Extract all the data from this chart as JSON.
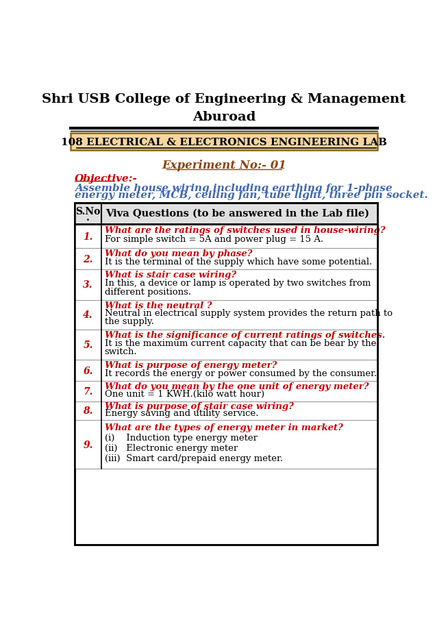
{
  "title_line1": "Shri USB College of Engineering & Management",
  "title_line2": "Aburoad",
  "lab_title": "108 ELECTRICAL & ELECTRONICS ENGINEERING LAB",
  "experiment": "Experiment No:- 01",
  "objective_label": "Objective:-",
  "objective_text_1": "Assemble house wiring including earthing for 1-phase",
  "objective_text_2": "energy meter, MCB, ceiling fan, tube light, three pin socket.",
  "table_header_col2": "Viva Questions (to be answered in the Lab file)",
  "rows": [
    {
      "num": "1.",
      "question": "What are the ratings of switches used in house-wiring?",
      "answer": "For simple switch = 5A and power plug = 15 A."
    },
    {
      "num": "2.",
      "question": "What do you mean by phase?",
      "answer": "It is the terminal of the supply which have some potential."
    },
    {
      "num": "3.",
      "question": "What is stair case wiring?",
      "answer": "In this, a device or lamp is operated by two switches from\ndifferent positions."
    },
    {
      "num": "4.",
      "question": "What is the neutral ?",
      "answer": "Neutral in electrical supply system provides the return path to\nthe supply."
    },
    {
      "num": "5.",
      "question": "What is the significance of current ratings of switches.",
      "answer": "It is the maximum current capacity that can be bear by the\nswitch."
    },
    {
      "num": "6.",
      "question": "What is purpose of energy meter?",
      "answer": "It records the energy or power consumed by the consumer."
    },
    {
      "num": "7.",
      "question": "What do you mean by the one unit of energy meter?",
      "answer": "One unit = 1 KWH.(kilo watt hour)"
    },
    {
      "num": "8.",
      "question": "What is purpose of stair case wiring?",
      "answer": "Energy saving and utility service."
    },
    {
      "num": "9.",
      "question": "What are the types of energy meter in market?",
      "answer_lines": [
        "(i)    Induction type energy meter",
        "(ii)   Electronic energy meter",
        "(iii)  Smart card/prepaid energy meter."
      ]
    }
  ],
  "color_black": "#000000",
  "color_red": "#CC0000",
  "color_brown": "#8B4513",
  "color_blue": "#4169B0",
  "color_lab_bg": "#F5D5A0",
  "color_white": "#FFFFFF"
}
